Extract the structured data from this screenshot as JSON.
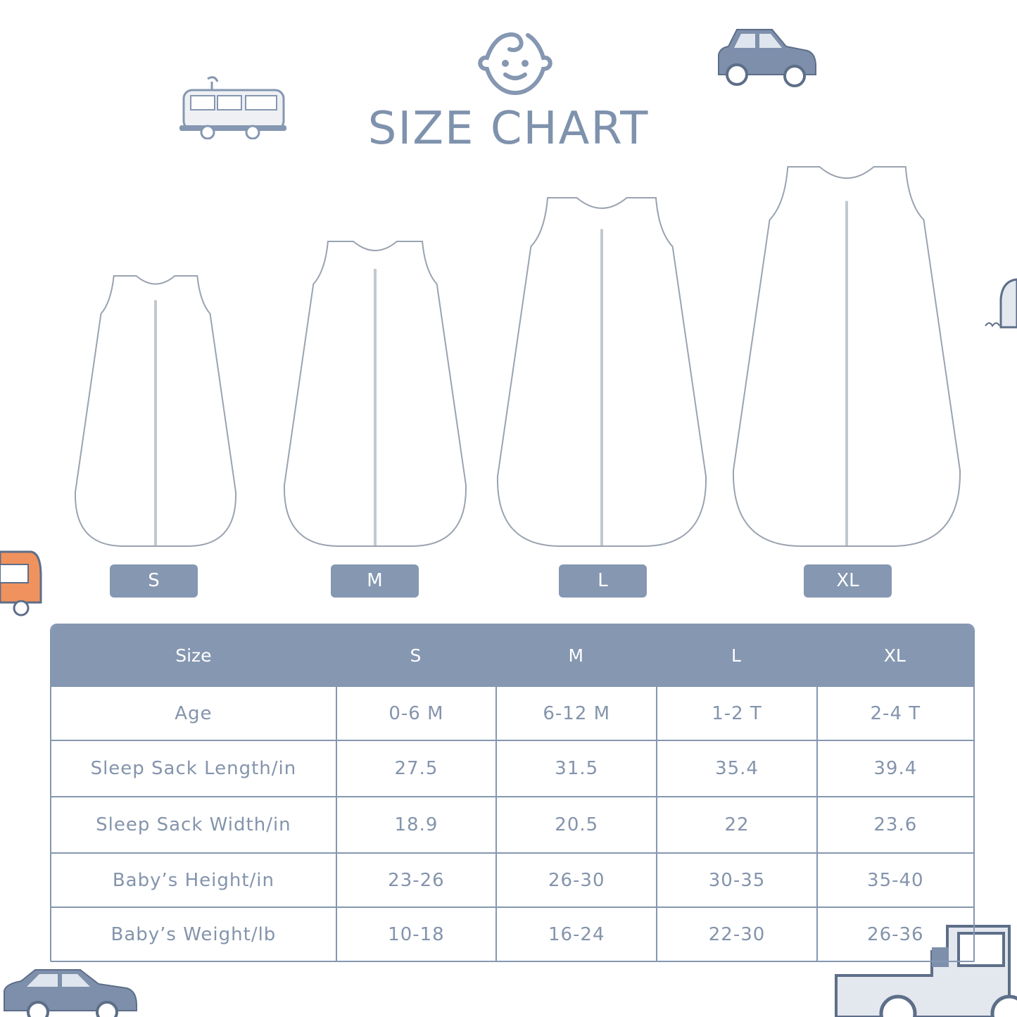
{
  "title": "SIZE CHART",
  "sizes": [
    "S",
    "M",
    "L",
    "XL"
  ],
  "icons": {
    "header": "baby-face-icon",
    "decor": [
      "van-icon",
      "car-icon",
      "car-icon",
      "pickup-truck-icon",
      "camper-icon"
    ]
  },
  "colors": {
    "accent": "#8597b1",
    "text": "#8494ac",
    "orange": "#f0925e"
  },
  "table": {
    "headers": [
      "Size",
      "S",
      "M",
      "L",
      "XL"
    ],
    "rows": [
      {
        "label": "Age",
        "values": [
          "0-6 M",
          "6-12 M",
          "1-2 T",
          "2-4 T"
        ]
      },
      {
        "label": "Sleep Sack Length/in",
        "values": [
          "27.5",
          "31.5",
          "35.4",
          "39.4"
        ]
      },
      {
        "label": "Sleep Sack Width/in",
        "values": [
          "18.9",
          "20.5",
          "22",
          "23.6"
        ]
      },
      {
        "label": "Baby’s Height/in",
        "values": [
          "23-26",
          "26-30",
          "30-35",
          "35-40"
        ]
      },
      {
        "label": "Baby’s Weight/lb",
        "values": [
          "10-18",
          "16-24",
          "22-30",
          "26-36"
        ]
      }
    ]
  }
}
